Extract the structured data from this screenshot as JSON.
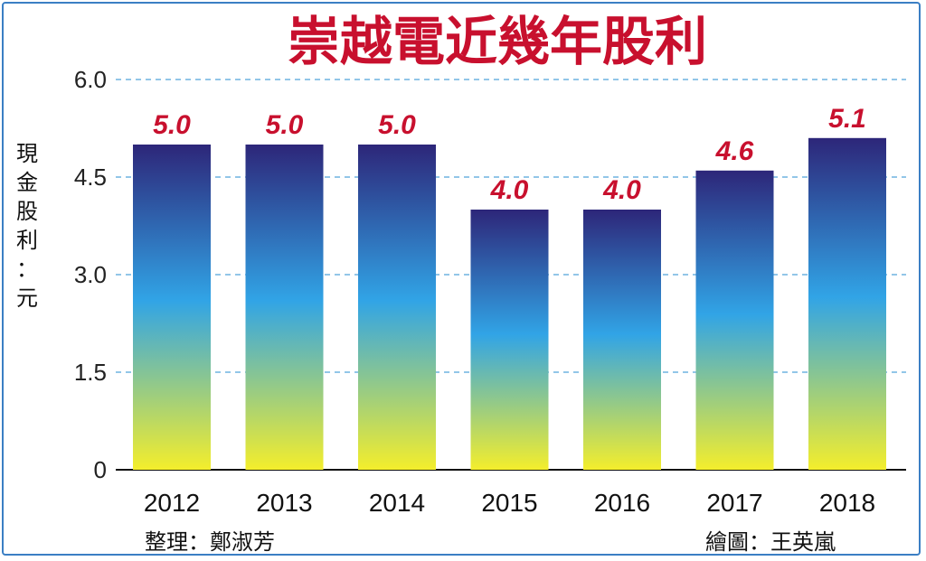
{
  "chart_data": {
    "type": "bar",
    "title": "崇越電近幾年股利",
    "ylabel": "現金股利：元",
    "categories": [
      "2012",
      "2013",
      "2014",
      "2015",
      "2016",
      "2017",
      "2018"
    ],
    "values": [
      5.0,
      5.0,
      5.0,
      4.0,
      4.0,
      4.6,
      5.1
    ],
    "value_labels": [
      "5.0",
      "5.0",
      "5.0",
      "4.0",
      "4.0",
      "4.6",
      "5.1"
    ],
    "yticks": [
      "0",
      "1.5",
      "3.0",
      "4.5",
      "6.0"
    ],
    "ylim": [
      0,
      6
    ],
    "grid": "horizontal dashed",
    "colors": {
      "title": "#c8102e",
      "value_label": "#c8102e",
      "bar_top": "#2d2679",
      "bar_mid": "#31a4e6",
      "bar_bottom": "#f4ee2c",
      "grid": "#6fb3e0"
    }
  },
  "credits": {
    "left": "整理：鄭淑芳",
    "right": "繪圖：王英嵐"
  }
}
